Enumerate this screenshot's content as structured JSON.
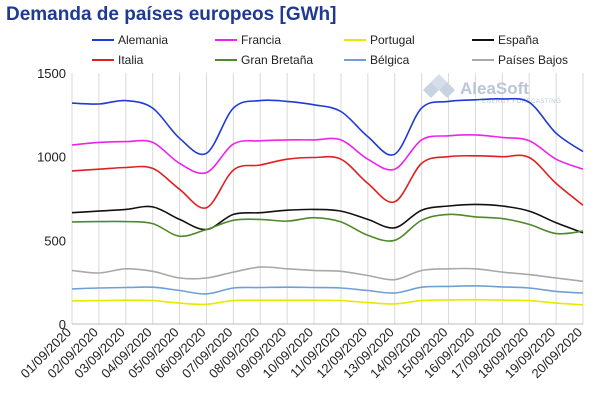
{
  "title": "Demanda de países europeos [GWh]",
  "watermark": {
    "name": "AleaSoft",
    "tagline": "ENERGY FORECASTING"
  },
  "chart_data": {
    "type": "line",
    "title": "Demanda de países europeos [GWh]",
    "xlabel": "",
    "ylabel": "",
    "ylim": [
      0,
      1500
    ],
    "yticks": [
      0,
      500,
      1000,
      1500
    ],
    "grid": "vertical",
    "legend_position": "top",
    "x": [
      "01/09/2020",
      "02/09/2020",
      "03/09/2020",
      "04/09/2020",
      "05/09/2020",
      "06/09/2020",
      "07/09/2020",
      "08/09/2020",
      "09/09/2020",
      "10/09/2020",
      "11/09/2020",
      "12/09/2020",
      "13/09/2020",
      "14/09/2020",
      "15/09/2020",
      "16/09/2020",
      "17/09/2020",
      "18/09/2020",
      "19/09/2020",
      "20/09/2020"
    ],
    "series": [
      {
        "name": "Alemania",
        "color": "#1f3ad6",
        "values": [
          1320,
          1315,
          1335,
          1290,
          1110,
          1020,
          1290,
          1335,
          1330,
          1310,
          1270,
          1120,
          1015,
          1290,
          1330,
          1340,
          1345,
          1325,
          1140,
          1030
        ]
      },
      {
        "name": "Francia",
        "color": "#ee22ee",
        "values": [
          1070,
          1085,
          1090,
          1085,
          960,
          905,
          1075,
          1095,
          1100,
          1100,
          1100,
          985,
          925,
          1100,
          1125,
          1130,
          1115,
          1095,
          985,
          925
        ]
      },
      {
        "name": "Portugal",
        "color": "#e8e800",
        "values": [
          138,
          140,
          142,
          140,
          125,
          118,
          140,
          142,
          142,
          142,
          140,
          128,
          120,
          140,
          144,
          145,
          143,
          140,
          125,
          115
        ]
      },
      {
        "name": "España",
        "color": "#111111",
        "values": [
          665,
          675,
          685,
          700,
          625,
          565,
          655,
          665,
          680,
          685,
          675,
          625,
          575,
          680,
          705,
          715,
          705,
          675,
          605,
          545
        ]
      },
      {
        "name": "Italia",
        "color": "#e02020",
        "values": [
          915,
          925,
          935,
          930,
          805,
          695,
          920,
          950,
          985,
          995,
          985,
          840,
          730,
          960,
          1000,
          1005,
          1000,
          995,
          840,
          710
        ]
      },
      {
        "name": "Gran Bretaña",
        "color": "#4f8a2a",
        "values": [
          610,
          612,
          612,
          600,
          525,
          565,
          620,
          625,
          615,
          635,
          610,
          530,
          500,
          620,
          655,
          640,
          630,
          595,
          540,
          555
        ]
      },
      {
        "name": "Bélgica",
        "color": "#6f9fd6",
        "values": [
          210,
          215,
          218,
          220,
          200,
          180,
          215,
          218,
          220,
          218,
          215,
          200,
          185,
          220,
          225,
          228,
          222,
          215,
          195,
          185
        ]
      },
      {
        "name": "Países Bajos",
        "color": "#a8a8a8",
        "values": [
          320,
          305,
          330,
          315,
          275,
          275,
          310,
          340,
          330,
          320,
          315,
          290,
          265,
          320,
          330,
          330,
          310,
          295,
          275,
          255
        ]
      }
    ]
  }
}
